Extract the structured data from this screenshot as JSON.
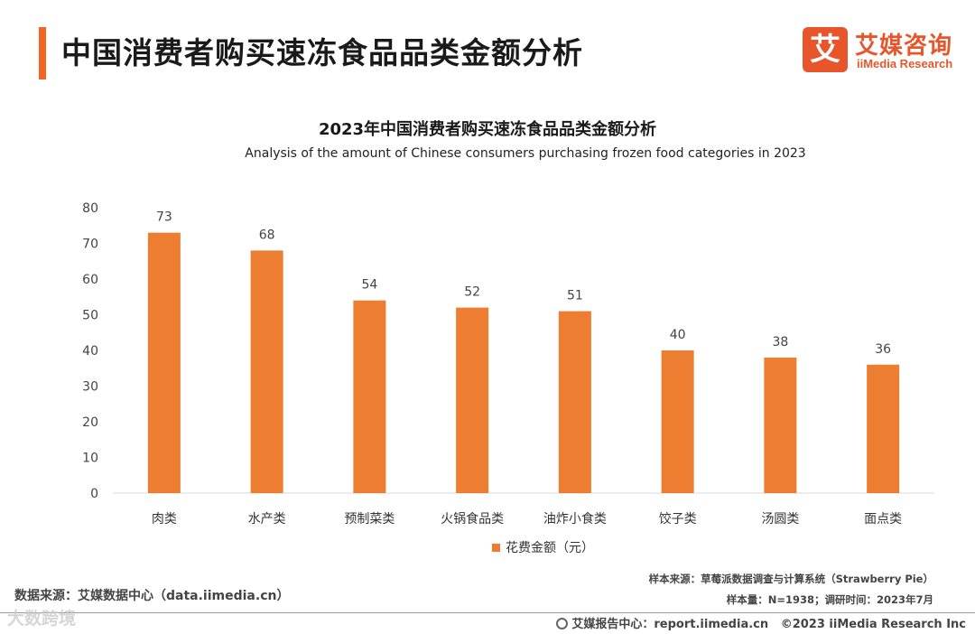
{
  "header": {
    "title": "中国消费者购买速冻食品品类金额分析",
    "logo_cn": "艾媒咨询",
    "logo_en": "iiMedia Research",
    "logo_glyph": "艾"
  },
  "colors": {
    "accent": "#f26522",
    "bar": "#ed7d31",
    "axis": "#d9d9d9"
  },
  "chart_data": {
    "type": "bar",
    "title": "2023年中国消费者购买速冻食品品类金额分析",
    "subtitle": "Analysis of the amount of Chinese consumers purchasing frozen food categories in 2023",
    "categories": [
      "肉类",
      "水产类",
      "预制菜类",
      "火锅食品类",
      "油炸小食类",
      "饺子类",
      "汤圆类",
      "面点类"
    ],
    "series": [
      {
        "name": "花费金额（元）",
        "values": [
          73,
          68,
          54,
          52,
          51,
          40,
          38,
          36
        ]
      }
    ],
    "yticks": [
      "0",
      "10",
      "20",
      "30",
      "40",
      "50",
      "60",
      "70",
      "80"
    ],
    "ylim": [
      0,
      80
    ],
    "xlabel": "",
    "ylabel": "",
    "grid": false,
    "legend": "bottom"
  },
  "footer": {
    "data_source": "数据来源：艾媒数据中心（data.iimedia.cn）",
    "sample_source": "样本来源：草莓派数据调查与计算系统（Strawberry Pie）",
    "sample_size": "样本量：N=1938；调研时间：2023年7月",
    "report_center": "艾媒报告中心：report.iimedia.cn",
    "copyright": "©2023  iiMedia Research  Inc",
    "watermark": "大数跨境"
  }
}
